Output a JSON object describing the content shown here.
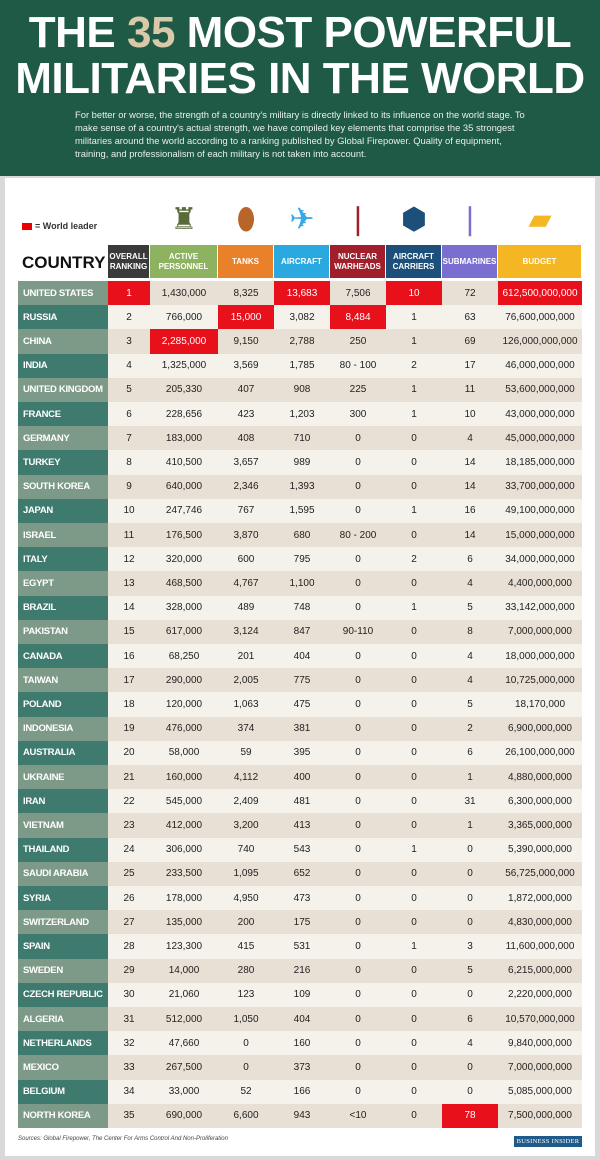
{
  "title": {
    "line1_pre": "THE ",
    "line1_num": "35",
    "line1_post": " MOST POWERFUL",
    "line2": "MILITARIES IN THE WORLD"
  },
  "intro": "For better or worse, the strength of a country's military is directly linked to its influence on the world stage. To make sense of a country's actual strength, we have compiled key elements that comprise the 35 strongest militaries around the world according to a ranking published by Global Firepower. Quality of equipment, training, and professionalism of each military is not taken into account.",
  "legend": "= World leader",
  "leader_color": "#e8101a",
  "country_header": "COUNTRY",
  "columns": [
    {
      "label": "OVERALL RANKING",
      "color": "#3a3a3a",
      "icon": "none"
    },
    {
      "label": "ACTIVE PERSONNEL",
      "color": "#8db360",
      "icon": "soldier-icon"
    },
    {
      "label": "TANKS",
      "color": "#e8812a",
      "icon": "tank-icon"
    },
    {
      "label": "AIRCRAFT",
      "color": "#2aa8e0",
      "icon": "jet-icon"
    },
    {
      "label": "NUCLEAR WARHEADS",
      "color": "#a01f2a",
      "icon": "missile-icon"
    },
    {
      "label": "AIRCRAFT CARRIERS",
      "color": "#1c4f7a",
      "icon": "carrier-icon"
    },
    {
      "label": "SUBMARINES",
      "color": "#7a6fd0",
      "icon": "submarine-icon"
    },
    {
      "label": "BUDGET",
      "color": "#f5b623",
      "icon": "gold-bars-icon"
    }
  ],
  "rows": [
    {
      "country": "UNITED STATES",
      "values": [
        "1",
        "1,430,000",
        "8,325",
        "13,683",
        "7,506",
        "10",
        "72",
        "612,500,000,000"
      ],
      "leader": [
        0,
        3,
        5,
        7
      ]
    },
    {
      "country": "RUSSIA",
      "values": [
        "2",
        "766,000",
        "15,000",
        "3,082",
        "8,484",
        "1",
        "63",
        "76,600,000,000"
      ],
      "leader": [
        2,
        4
      ]
    },
    {
      "country": "CHINA",
      "values": [
        "3",
        "2,285,000",
        "9,150",
        "2,788",
        "250",
        "1",
        "69",
        "126,000,000,000"
      ],
      "leader": [
        1
      ]
    },
    {
      "country": "INDIA",
      "values": [
        "4",
        "1,325,000",
        "3,569",
        "1,785",
        "80 - 100",
        "2",
        "17",
        "46,000,000,000"
      ],
      "leader": []
    },
    {
      "country": "UNITED KINGDOM",
      "values": [
        "5",
        "205,330",
        "407",
        "908",
        "225",
        "1",
        "11",
        "53,600,000,000"
      ],
      "leader": []
    },
    {
      "country": "FRANCE",
      "values": [
        "6",
        "228,656",
        "423",
        "1,203",
        "300",
        "1",
        "10",
        "43,000,000,000"
      ],
      "leader": []
    },
    {
      "country": "GERMANY",
      "values": [
        "7",
        "183,000",
        "408",
        "710",
        "0",
        "0",
        "4",
        "45,000,000,000"
      ],
      "leader": []
    },
    {
      "country": "TURKEY",
      "values": [
        "8",
        "410,500",
        "3,657",
        "989",
        "0",
        "0",
        "14",
        "18,185,000,000"
      ],
      "leader": []
    },
    {
      "country": "SOUTH KOREA",
      "values": [
        "9",
        "640,000",
        "2,346",
        "1,393",
        "0",
        "0",
        "14",
        "33,700,000,000"
      ],
      "leader": []
    },
    {
      "country": "JAPAN",
      "values": [
        "10",
        "247,746",
        "767",
        "1,595",
        "0",
        "1",
        "16",
        "49,100,000,000"
      ],
      "leader": []
    },
    {
      "country": "ISRAEL",
      "values": [
        "11",
        "176,500",
        "3,870",
        "680",
        "80 - 200",
        "0",
        "14",
        "15,000,000,000"
      ],
      "leader": []
    },
    {
      "country": "ITALY",
      "values": [
        "12",
        "320,000",
        "600",
        "795",
        "0",
        "2",
        "6",
        "34,000,000,000"
      ],
      "leader": []
    },
    {
      "country": "EGYPT",
      "values": [
        "13",
        "468,500",
        "4,767",
        "1,100",
        "0",
        "0",
        "4",
        "4,400,000,000"
      ],
      "leader": []
    },
    {
      "country": "BRAZIL",
      "values": [
        "14",
        "328,000",
        "489",
        "748",
        "0",
        "1",
        "5",
        "33,142,000,000"
      ],
      "leader": []
    },
    {
      "country": "PAKISTAN",
      "values": [
        "15",
        "617,000",
        "3,124",
        "847",
        "90-110",
        "0",
        "8",
        "7,000,000,000"
      ],
      "leader": []
    },
    {
      "country": "CANADA",
      "values": [
        "16",
        "68,250",
        "201",
        "404",
        "0",
        "0",
        "4",
        "18,000,000,000"
      ],
      "leader": []
    },
    {
      "country": "TAIWAN",
      "values": [
        "17",
        "290,000",
        "2,005",
        "775",
        "0",
        "0",
        "4",
        "10,725,000,000"
      ],
      "leader": []
    },
    {
      "country": "POLAND",
      "values": [
        "18",
        "120,000",
        "1,063",
        "475",
        "0",
        "0",
        "5",
        "18,170,000"
      ],
      "leader": []
    },
    {
      "country": "INDONESIA",
      "values": [
        "19",
        "476,000",
        "374",
        "381",
        "0",
        "0",
        "2",
        "6,900,000,000"
      ],
      "leader": []
    },
    {
      "country": "AUSTRALIA",
      "values": [
        "20",
        "58,000",
        "59",
        "395",
        "0",
        "0",
        "6",
        "26,100,000,000"
      ],
      "leader": []
    },
    {
      "country": "UKRAINE",
      "values": [
        "21",
        "160,000",
        "4,112",
        "400",
        "0",
        "0",
        "1",
        "4,880,000,000"
      ],
      "leader": []
    },
    {
      "country": "IRAN",
      "values": [
        "22",
        "545,000",
        "2,409",
        "481",
        "0",
        "0",
        "31",
        "6,300,000,000"
      ],
      "leader": []
    },
    {
      "country": "VIETNAM",
      "values": [
        "23",
        "412,000",
        "3,200",
        "413",
        "0",
        "0",
        "1",
        "3,365,000,000"
      ],
      "leader": []
    },
    {
      "country": "THAILAND",
      "values": [
        "24",
        "306,000",
        "740",
        "543",
        "0",
        "1",
        "0",
        "5,390,000,000"
      ],
      "leader": []
    },
    {
      "country": "SAUDI ARABIA",
      "values": [
        "25",
        "233,500",
        "1,095",
        "652",
        "0",
        "0",
        "0",
        "56,725,000,000"
      ],
      "leader": []
    },
    {
      "country": "SYRIA",
      "values": [
        "26",
        "178,000",
        "4,950",
        "473",
        "0",
        "0",
        "0",
        "1,872,000,000"
      ],
      "leader": []
    },
    {
      "country": "SWITZERLAND",
      "values": [
        "27",
        "135,000",
        "200",
        "175",
        "0",
        "0",
        "0",
        "4,830,000,000"
      ],
      "leader": []
    },
    {
      "country": "SPAIN",
      "values": [
        "28",
        "123,300",
        "415",
        "531",
        "0",
        "1",
        "3",
        "11,600,000,000"
      ],
      "leader": []
    },
    {
      "country": "SWEDEN",
      "values": [
        "29",
        "14,000",
        "280",
        "216",
        "0",
        "0",
        "5",
        "6,215,000,000"
      ],
      "leader": []
    },
    {
      "country": "CZECH REPUBLIC",
      "values": [
        "30",
        "21,060",
        "123",
        "109",
        "0",
        "0",
        "0",
        "2,220,000,000"
      ],
      "leader": []
    },
    {
      "country": "ALGERIA",
      "values": [
        "31",
        "512,000",
        "1,050",
        "404",
        "0",
        "0",
        "6",
        "10,570,000,000"
      ],
      "leader": []
    },
    {
      "country": "NETHERLANDS",
      "values": [
        "32",
        "47,660",
        "0",
        "160",
        "0",
        "0",
        "4",
        "9,840,000,000"
      ],
      "leader": []
    },
    {
      "country": "MEXICO",
      "values": [
        "33",
        "267,500",
        "0",
        "373",
        "0",
        "0",
        "0",
        "7,000,000,000"
      ],
      "leader": []
    },
    {
      "country": "BELGIUM",
      "values": [
        "34",
        "33,000",
        "52",
        "166",
        "0",
        "0",
        "0",
        "5,085,000,000"
      ],
      "leader": []
    },
    {
      "country": "NORTH KOREA",
      "values": [
        "35",
        "690,000",
        "6,600",
        "943",
        "<10",
        "0",
        "78",
        "7,500,000,000"
      ],
      "leader": [
        6
      ]
    }
  ],
  "sources": "Sources: Global Firepower, The Center For Arms Control And Non-Proliferation",
  "brand": "BUSINESS INSIDER"
}
